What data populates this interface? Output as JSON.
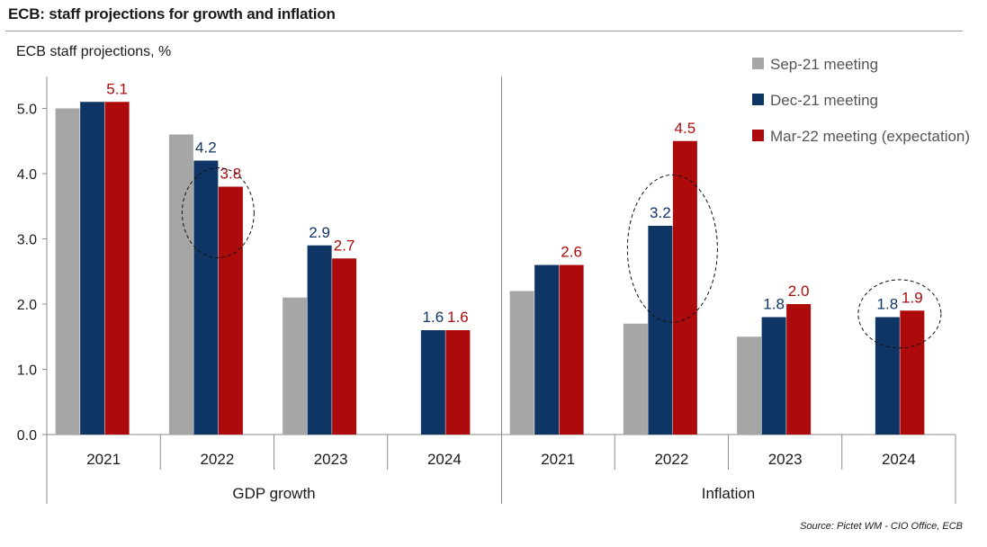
{
  "header": {
    "title": "ECB: staff projections for growth and inflation"
  },
  "source": "Source: Pictet WM - CIO Office, ECB",
  "colors": {
    "sep21": "#a6a6a6",
    "dec21": "#0f3565",
    "mar22": "#ad0b0b",
    "axis": "#8c8c8c",
    "text": "#1a1a1a"
  },
  "chart_data": {
    "type": "bar",
    "title": "ECB: staff projections for growth and inflation",
    "ylabel": "ECB staff projections, %",
    "xlabel": "",
    "ylim": [
      0,
      5.5
    ],
    "yticks": [
      0.0,
      1.0,
      2.0,
      3.0,
      4.0,
      5.0
    ],
    "ytick_labels": [
      "0.0",
      "1.0",
      "2.0",
      "3.0",
      "4.0",
      "5.0"
    ],
    "legend_position": "top-right",
    "groups": [
      {
        "name": "GDP growth",
        "categories": [
          "2021",
          "2022",
          "2023",
          "2024"
        ]
      },
      {
        "name": "Inflation",
        "categories": [
          "2021",
          "2022",
          "2023",
          "2024"
        ]
      }
    ],
    "categories": [
      "2021",
      "2022",
      "2023",
      "2024",
      "2021",
      "2022",
      "2023",
      "2024"
    ],
    "series": [
      {
        "name": "Sep-21 meeting",
        "key": "sep21",
        "values": [
          5.0,
          4.6,
          2.1,
          null,
          2.2,
          1.7,
          1.5,
          null
        ],
        "labels": [
          null,
          null,
          null,
          null,
          null,
          null,
          null,
          null
        ]
      },
      {
        "name": "Dec-21 meeting",
        "key": "dec21",
        "values": [
          5.1,
          4.2,
          2.9,
          1.6,
          2.6,
          3.2,
          1.8,
          1.8
        ],
        "labels": [
          null,
          "4.2",
          "2.9",
          "1.6",
          null,
          "3.2",
          "1.8",
          "1.8"
        ]
      },
      {
        "name": "Mar-22 meeting (expectation)",
        "key": "mar22",
        "values": [
          5.1,
          3.8,
          2.7,
          1.6,
          2.6,
          4.5,
          2.0,
          1.9
        ],
        "labels": [
          "5.1",
          "3.8",
          "2.7",
          "1.6",
          "2.6",
          "4.5",
          "2.0",
          "1.9"
        ]
      }
    ],
    "annotations": [
      {
        "type": "dashed-ellipse",
        "around": "GDP growth 2022 Dec-21 and Mar-22"
      },
      {
        "type": "dashed-ellipse",
        "around": "Inflation 2022 Dec-21 and Mar-22"
      },
      {
        "type": "dashed-ellipse",
        "around": "Inflation 2024 Dec-21 and Mar-22"
      }
    ]
  }
}
